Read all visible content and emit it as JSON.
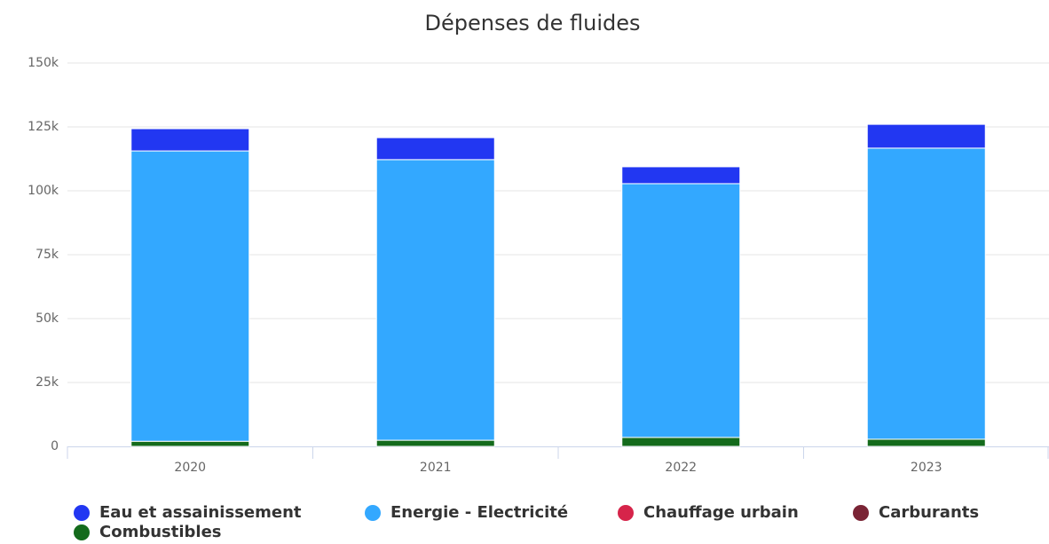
{
  "chart_data": {
    "type": "stacked_bar",
    "title": "Dépenses de fluides",
    "categories": [
      "2020",
      "2021",
      "2022",
      "2023"
    ],
    "series": [
      {
        "name": "Eau et assainissement",
        "color": "#2237f2",
        "values": [
          8700,
          8600,
          6600,
          9300
        ]
      },
      {
        "name": "Energie - Electricité",
        "color": "#33a8ff",
        "values": [
          113600,
          109800,
          99300,
          113900
        ]
      },
      {
        "name": "Chauffage urbain",
        "color": "#d6244a",
        "values": [
          0,
          0,
          0,
          0
        ]
      },
      {
        "name": "Carburants",
        "color": "#7a2435",
        "values": [
          0,
          0,
          0,
          0
        ]
      },
      {
        "name": "Combustibles",
        "color": "#146b1c",
        "values": [
          2000,
          2400,
          3500,
          2800
        ]
      }
    ],
    "ylim": [
      0,
      150000
    ],
    "yticks": [
      0,
      {
        "value": 25000,
        "label": "25k"
      },
      {
        "value": 50000,
        "label": "50k"
      },
      {
        "value": 75000,
        "label": "75k"
      },
      {
        "value": 100000,
        "label": "100k"
      },
      {
        "value": 125000,
        "label": "125k"
      },
      {
        "value": 150000,
        "label": "150k"
      }
    ],
    "grid": true
  }
}
